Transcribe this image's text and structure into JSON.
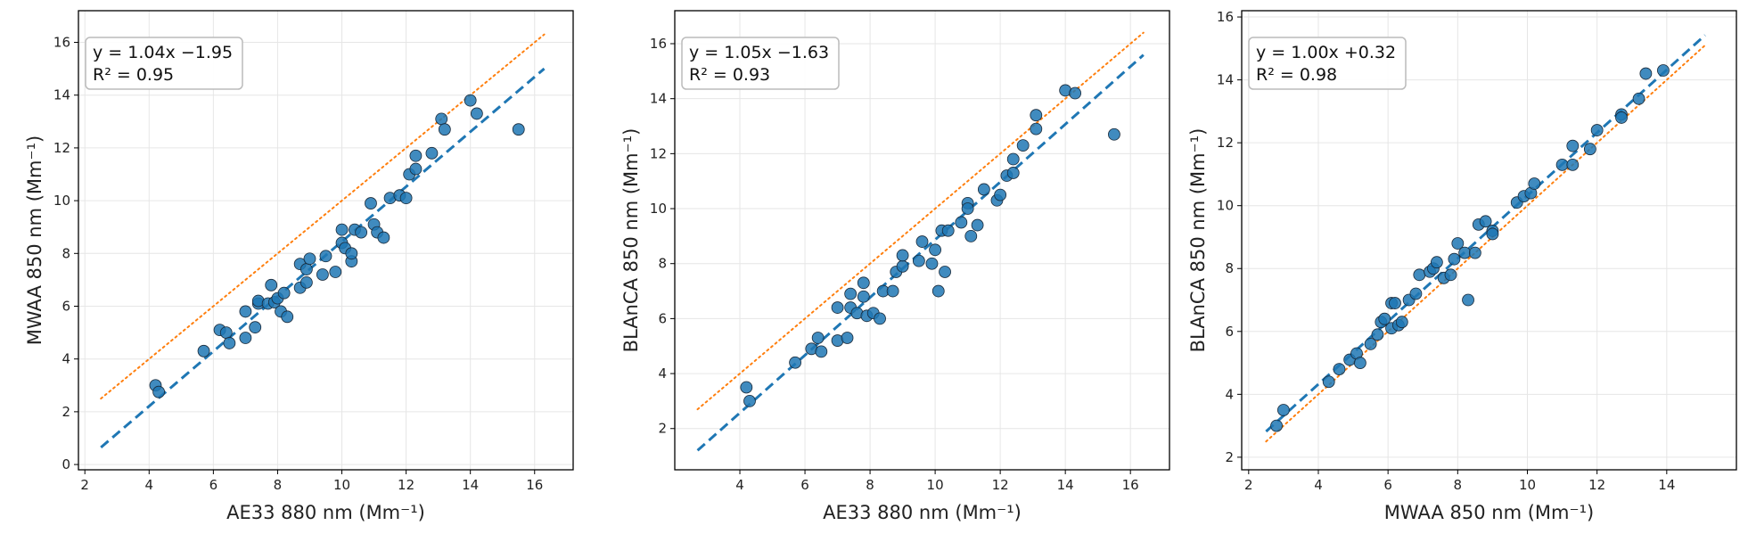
{
  "colors": {
    "points": "#1f77b4",
    "fit": "#1f77b4",
    "identity": "#ff7f0e",
    "grid": "#e6e6e6"
  },
  "chart_data": [
    {
      "type": "scatter",
      "xlabel": "AE33 880 nm (Mm⁻¹)",
      "ylabel": "MWAA 850 nm (Mm⁻¹)",
      "xlim": [
        1.8,
        17.2
      ],
      "ylim": [
        -0.2,
        17.2
      ],
      "xticks": [
        2,
        4,
        6,
        8,
        10,
        12,
        14,
        16
      ],
      "yticks": [
        0,
        2,
        4,
        6,
        8,
        10,
        12,
        14,
        16
      ],
      "grid": true,
      "annotation": {
        "line1": "y = 1.04x −1.95",
        "line2": "R² = 0.95",
        "placement": "top-left"
      },
      "fit": {
        "slope": 1.04,
        "intercept": -1.95,
        "x_range": [
          2.5,
          16.3
        ],
        "style": "dashed"
      },
      "identity_line": {
        "x_range": [
          2.5,
          16.3
        ],
        "style": "dotted"
      },
      "points": [
        [
          4.2,
          3.0
        ],
        [
          4.3,
          2.75
        ],
        [
          5.7,
          4.3
        ],
        [
          6.2,
          5.1
        ],
        [
          6.4,
          5.0
        ],
        [
          6.5,
          4.6
        ],
        [
          7.0,
          4.8
        ],
        [
          7.0,
          5.8
        ],
        [
          7.3,
          5.2
        ],
        [
          7.4,
          6.1
        ],
        [
          7.4,
          6.2
        ],
        [
          7.7,
          6.1
        ],
        [
          7.8,
          6.8
        ],
        [
          7.9,
          6.15
        ],
        [
          8.0,
          6.3
        ],
        [
          8.1,
          5.8
        ],
        [
          8.2,
          6.5
        ],
        [
          8.3,
          5.6
        ],
        [
          8.7,
          6.7
        ],
        [
          8.7,
          7.6
        ],
        [
          8.9,
          6.9
        ],
        [
          8.9,
          7.4
        ],
        [
          9.0,
          7.8
        ],
        [
          9.4,
          7.2
        ],
        [
          9.5,
          7.9
        ],
        [
          9.8,
          7.3
        ],
        [
          10.0,
          8.4
        ],
        [
          10.0,
          8.9
        ],
        [
          10.1,
          8.2
        ],
        [
          10.3,
          7.7
        ],
        [
          10.3,
          8.0
        ],
        [
          10.4,
          8.9
        ],
        [
          10.6,
          8.8
        ],
        [
          10.9,
          9.9
        ],
        [
          11.0,
          9.1
        ],
        [
          11.1,
          8.8
        ],
        [
          11.3,
          8.6
        ],
        [
          11.5,
          10.1
        ],
        [
          11.8,
          10.2
        ],
        [
          12.0,
          10.1
        ],
        [
          12.1,
          11.0
        ],
        [
          12.3,
          11.2
        ],
        [
          12.3,
          11.7
        ],
        [
          12.8,
          11.8
        ],
        [
          13.1,
          13.1
        ],
        [
          13.2,
          12.7
        ],
        [
          14.0,
          13.8
        ],
        [
          14.2,
          13.3
        ],
        [
          15.5,
          12.7
        ]
      ]
    },
    {
      "type": "scatter",
      "xlabel": "AE33 880 nm (Mm⁻¹)",
      "ylabel": "BLAnCA 850 nm (Mm⁻¹)",
      "xlim": [
        2.0,
        17.2
      ],
      "ylim": [
        0.5,
        17.2
      ],
      "xticks": [
        4,
        6,
        8,
        10,
        12,
        14,
        16
      ],
      "yticks": [
        2,
        4,
        6,
        8,
        10,
        12,
        14,
        16
      ],
      "grid": true,
      "annotation": {
        "line1": "y = 1.05x −1.63",
        "line2": "R² = 0.93",
        "placement": "top-left"
      },
      "fit": {
        "slope": 1.05,
        "intercept": -1.63,
        "x_range": [
          2.7,
          16.4
        ],
        "style": "dashed"
      },
      "identity_line": {
        "x_range": [
          2.7,
          16.4
        ],
        "style": "dotted"
      },
      "points": [
        [
          4.2,
          3.5
        ],
        [
          4.3,
          3.0
        ],
        [
          5.7,
          4.4
        ],
        [
          6.2,
          4.9
        ],
        [
          6.4,
          5.3
        ],
        [
          6.5,
          4.8
        ],
        [
          7.0,
          5.2
        ],
        [
          7.0,
          6.4
        ],
        [
          7.3,
          5.3
        ],
        [
          7.4,
          6.9
        ],
        [
          7.4,
          6.4
        ],
        [
          7.6,
          6.2
        ],
        [
          7.8,
          7.3
        ],
        [
          7.8,
          6.8
        ],
        [
          7.9,
          6.1
        ],
        [
          8.1,
          6.2
        ],
        [
          8.3,
          6.0
        ],
        [
          8.4,
          7.0
        ],
        [
          8.7,
          7.0
        ],
        [
          8.8,
          7.7
        ],
        [
          9.0,
          7.9
        ],
        [
          9.0,
          8.3
        ],
        [
          9.5,
          8.1
        ],
        [
          9.6,
          8.8
        ],
        [
          9.9,
          8.0
        ],
        [
          10.0,
          8.5
        ],
        [
          10.1,
          7.0
        ],
        [
          10.2,
          9.2
        ],
        [
          10.3,
          7.7
        ],
        [
          10.4,
          9.2
        ],
        [
          10.8,
          9.5
        ],
        [
          11.0,
          10.2
        ],
        [
          11.0,
          10.0
        ],
        [
          11.1,
          9.0
        ],
        [
          11.3,
          9.4
        ],
        [
          11.5,
          10.7
        ],
        [
          11.9,
          10.3
        ],
        [
          12.0,
          10.5
        ],
        [
          12.2,
          11.2
        ],
        [
          12.4,
          11.3
        ],
        [
          12.4,
          11.8
        ],
        [
          12.7,
          12.3
        ],
        [
          13.1,
          13.4
        ],
        [
          13.1,
          12.9
        ],
        [
          14.0,
          14.3
        ],
        [
          14.3,
          14.2
        ],
        [
          15.5,
          12.7
        ]
      ]
    },
    {
      "type": "scatter",
      "xlabel": "MWAA 850 nm (Mm⁻¹)",
      "ylabel": "BLAnCA 850 nm (Mm⁻¹)",
      "xlim": [
        1.8,
        16.0
      ],
      "ylim": [
        1.6,
        16.2
      ],
      "xticks": [
        2,
        4,
        6,
        8,
        10,
        12,
        14
      ],
      "yticks": [
        2,
        4,
        6,
        8,
        10,
        12,
        14,
        16
      ],
      "grid": true,
      "annotation": {
        "line1": "y = 1.00x +0.32",
        "line2": "R² = 0.98",
        "placement": "top-left"
      },
      "fit": {
        "slope": 1.0,
        "intercept": 0.32,
        "x_range": [
          2.5,
          15.1
        ],
        "style": "dashed"
      },
      "identity_line": {
        "x_range": [
          2.5,
          15.1
        ],
        "style": "dotted"
      },
      "points": [
        [
          2.8,
          3.0
        ],
        [
          3.0,
          3.5
        ],
        [
          4.3,
          4.4
        ],
        [
          4.6,
          4.8
        ],
        [
          4.9,
          5.1
        ],
        [
          5.1,
          5.3
        ],
        [
          5.2,
          5.0
        ],
        [
          5.5,
          5.6
        ],
        [
          5.7,
          5.9
        ],
        [
          5.8,
          6.3
        ],
        [
          5.9,
          6.4
        ],
        [
          6.1,
          6.1
        ],
        [
          6.1,
          6.9
        ],
        [
          6.2,
          6.9
        ],
        [
          6.3,
          6.2
        ],
        [
          6.4,
          6.3
        ],
        [
          6.6,
          7.0
        ],
        [
          6.8,
          7.2
        ],
        [
          6.9,
          7.8
        ],
        [
          7.2,
          7.9
        ],
        [
          7.3,
          8.0
        ],
        [
          7.4,
          8.2
        ],
        [
          7.6,
          7.7
        ],
        [
          7.8,
          7.8
        ],
        [
          7.9,
          8.3
        ],
        [
          8.0,
          8.8
        ],
        [
          8.2,
          8.5
        ],
        [
          8.3,
          7.0
        ],
        [
          8.5,
          8.5
        ],
        [
          8.6,
          9.4
        ],
        [
          8.8,
          9.5
        ],
        [
          9.0,
          9.2
        ],
        [
          9.0,
          9.1
        ],
        [
          9.7,
          10.1
        ],
        [
          9.9,
          10.3
        ],
        [
          10.1,
          10.4
        ],
        [
          10.2,
          10.7
        ],
        [
          11.0,
          11.3
        ],
        [
          11.3,
          11.3
        ],
        [
          11.3,
          11.9
        ],
        [
          11.8,
          11.8
        ],
        [
          12.0,
          12.4
        ],
        [
          12.7,
          12.9
        ],
        [
          12.7,
          12.8
        ],
        [
          13.2,
          13.4
        ],
        [
          13.4,
          14.2
        ],
        [
          13.9,
          14.3
        ]
      ]
    }
  ]
}
